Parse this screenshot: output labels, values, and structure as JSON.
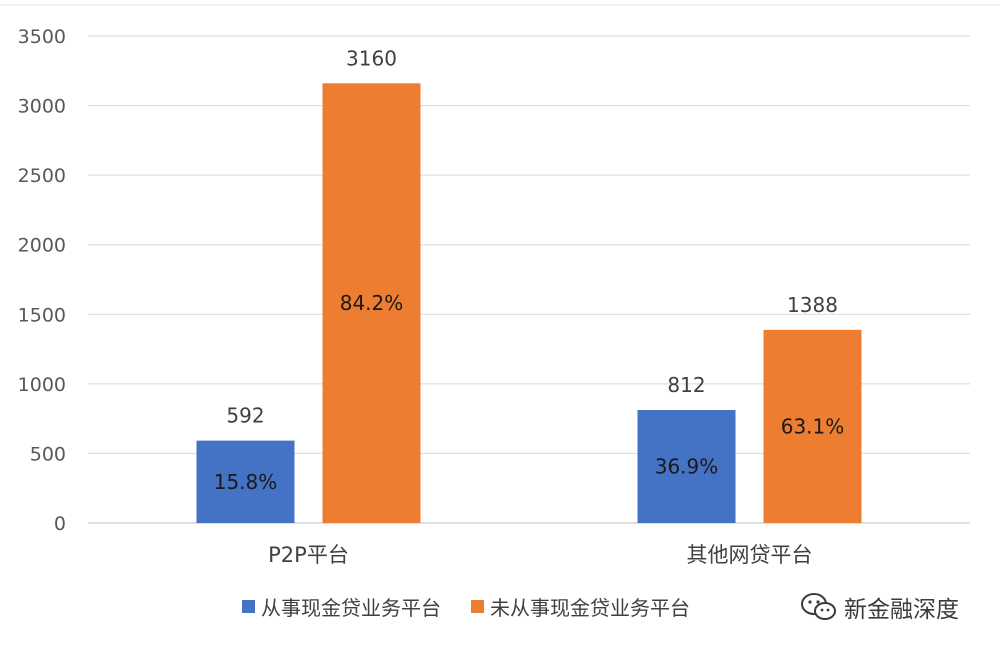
{
  "chart_data": {
    "type": "bar",
    "categories": [
      "P2P平台",
      "其他网贷平台"
    ],
    "series": [
      {
        "name": "从事现金贷业务平台",
        "values": [
          592,
          812
        ],
        "labels": [
          "15.8%",
          "36.9%"
        ],
        "color": "#4472C4"
      },
      {
        "name": "未从事现金贷业务平台",
        "values": [
          3160,
          1388
        ],
        "labels": [
          "84.2%",
          "63.1%"
        ],
        "color": "#ED7D31"
      }
    ],
    "yticks": [
      "0",
      "500",
      "1000",
      "1500",
      "2000",
      "2500",
      "3000",
      "3500"
    ],
    "ylim": [
      0,
      3500
    ],
    "grid": true,
    "legend_position": "bottom"
  },
  "watermark": {
    "icon": "wechat-icon",
    "text": "新金融深度"
  }
}
